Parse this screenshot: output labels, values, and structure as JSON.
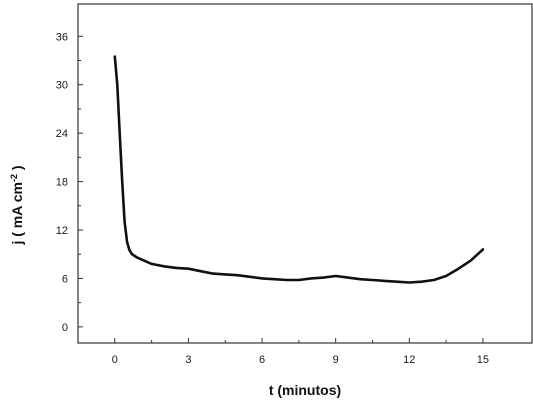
{
  "chart_data": {
    "type": "line",
    "title": "",
    "xlabel": "t (minutos)",
    "ylabel_main": "j ( mA cm",
    "ylabel_sup": "-2",
    "ylabel_end": " )",
    "xlim": [
      -1.5,
      17.0
    ],
    "ylim": [
      -2.0,
      40.0
    ],
    "x_ticks": [
      0,
      3,
      6,
      9,
      12,
      15
    ],
    "y_ticks": [
      0,
      6,
      12,
      18,
      24,
      30,
      36
    ],
    "grid": false,
    "legend": "none",
    "series": [
      {
        "color": "#111111",
        "x": [
          0.0,
          0.1,
          0.2,
          0.3,
          0.4,
          0.5,
          0.6,
          0.7,
          0.9,
          1.2,
          1.5,
          2.0,
          2.5,
          3.0,
          3.5,
          4.0,
          4.5,
          5.0,
          5.5,
          6.0,
          6.5,
          7.0,
          7.5,
          8.0,
          8.5,
          9.0,
          9.5,
          10.0,
          10.5,
          11.0,
          11.5,
          12.0,
          12.5,
          13.0,
          13.5,
          14.0,
          14.5,
          15.0
        ],
        "y": [
          33.5,
          30.0,
          24.0,
          18.0,
          13.0,
          10.5,
          9.5,
          9.0,
          8.6,
          8.2,
          7.8,
          7.5,
          7.3,
          7.2,
          6.9,
          6.6,
          6.5,
          6.4,
          6.2,
          6.0,
          5.9,
          5.8,
          5.8,
          6.0,
          6.1,
          6.3,
          6.1,
          5.9,
          5.8,
          5.7,
          5.6,
          5.5,
          5.6,
          5.8,
          6.3,
          7.2,
          8.2,
          9.6
        ]
      }
    ]
  }
}
